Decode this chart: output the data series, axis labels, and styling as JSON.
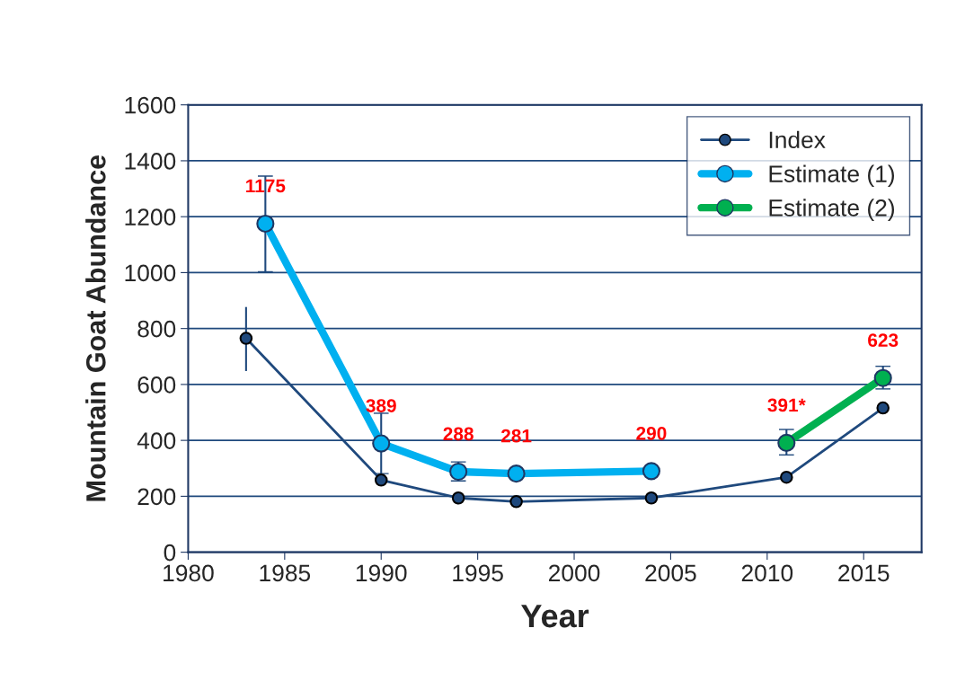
{
  "chart_data": {
    "type": "line",
    "xlabel": "Year",
    "ylabel": "Mountain Goat Abundance",
    "xlim": [
      1980,
      2018
    ],
    "xticks": [
      1980,
      1985,
      1990,
      1995,
      2000,
      2005,
      2010,
      2015
    ],
    "ylim": [
      0,
      1600
    ],
    "yticks": [
      0,
      200,
      400,
      600,
      800,
      1000,
      1200,
      1400,
      1600
    ],
    "grid": "y",
    "legend": "top right",
    "marker": "circle",
    "line_style": "solid",
    "series": [
      {
        "name": "Index",
        "color": "#1f497d",
        "x": [
          1983,
          1990,
          1994,
          1997,
          2004,
          2011,
          2016
        ],
        "values": [
          765,
          258,
          194,
          181,
          194,
          268,
          516
        ],
        "errors": [
          [
            648,
            877
          ],
          null,
          null,
          null,
          null,
          null,
          null
        ]
      },
      {
        "name": "Estimate (1)",
        "color": "#00b0f0",
        "x": [
          1984,
          1990,
          1994,
          1997,
          2004
        ],
        "values": [
          1175,
          389,
          288,
          281,
          290
        ],
        "errors": [
          [
            1003,
            1345
          ],
          [
            281,
            497
          ],
          [
            255,
            323
          ],
          null,
          null
        ],
        "value_labels": [
          "1175",
          "389",
          "288",
          "281",
          "290"
        ]
      },
      {
        "name": "Estimate (2)",
        "color": "#00b050",
        "x": [
          2011,
          2016
        ],
        "values": [
          391,
          623
        ],
        "errors": [
          [
            348,
            439
          ],
          [
            584,
            665
          ]
        ],
        "value_labels": [
          "391*",
          "623"
        ]
      }
    ]
  }
}
